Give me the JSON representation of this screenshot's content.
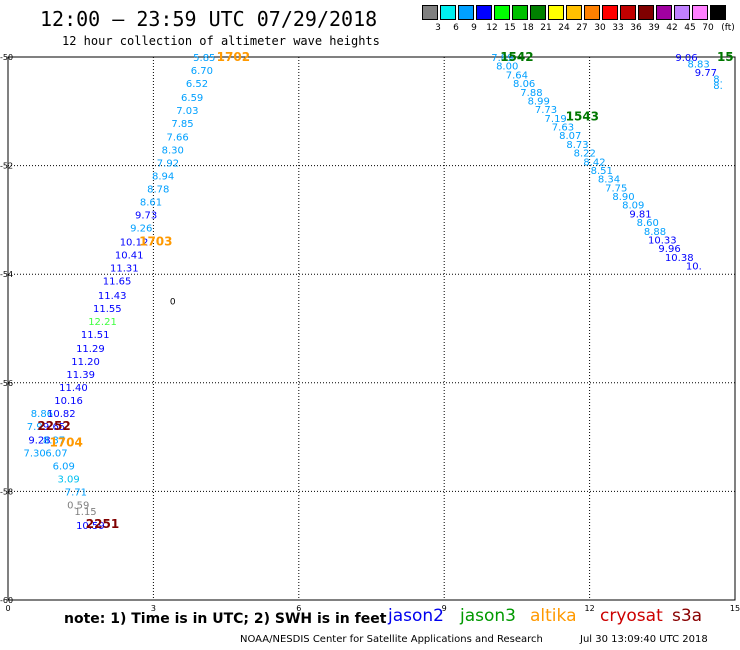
{
  "title": "12:00 – 23:59 UTC 07/29/2018",
  "subtitle": "12 hour collection of altimeter wave heights",
  "legend": {
    "unit": "(ft)",
    "bins": [
      {
        "label": "3",
        "color": "#808080"
      },
      {
        "label": "6",
        "color": "#00f0f0"
      },
      {
        "label": "9",
        "color": "#00a0ff"
      },
      {
        "label": "12",
        "color": "#0000ff"
      },
      {
        "label": "15",
        "color": "#00ff00"
      },
      {
        "label": "18",
        "color": "#00c000"
      },
      {
        "label": "21",
        "color": "#008000"
      },
      {
        "label": "24",
        "color": "#ffff00"
      },
      {
        "label": "27",
        "color": "#ffc000"
      },
      {
        "label": "30",
        "color": "#ff8000"
      },
      {
        "label": "33",
        "color": "#ff0000"
      },
      {
        "label": "36",
        "color": "#c00000"
      },
      {
        "label": "39",
        "color": "#800000"
      },
      {
        "label": "42",
        "color": "#a000a0"
      },
      {
        "label": "45",
        "color": "#c080ff"
      },
      {
        "label": "70",
        "color": "#ff80ff"
      },
      {
        "label": "",
        "color": "#000000"
      }
    ]
  },
  "axes": {
    "lat_ticks": [
      "-50",
      "-52",
      "-54",
      "-56",
      "-58",
      "-60"
    ],
    "lon_ticks": [
      "0",
      "3",
      "6",
      "9",
      "12",
      "15"
    ]
  },
  "chart_data": {
    "type": "scatter",
    "xlim": [
      0,
      15
    ],
    "ylim": [
      -60,
      -50
    ],
    "swh_points": [
      {
        "v": "5.85",
        "lon": 4.05,
        "lat": -50.0,
        "c": "#00a0ff"
      },
      {
        "v": "6.70",
        "lon": 4.0,
        "lat": -50.24,
        "c": "#00a0ff"
      },
      {
        "v": "6.52",
        "lon": 3.9,
        "lat": -50.48,
        "c": "#00a0ff"
      },
      {
        "v": "6.59",
        "lon": 3.8,
        "lat": -50.74,
        "c": "#00a0ff"
      },
      {
        "v": "7.03",
        "lon": 3.7,
        "lat": -50.98,
        "c": "#00a0ff"
      },
      {
        "v": "7.85",
        "lon": 3.6,
        "lat": -51.22,
        "c": "#00a0ff"
      },
      {
        "v": "7.66",
        "lon": 3.5,
        "lat": -51.46,
        "c": "#00a0ff"
      },
      {
        "v": "8.30",
        "lon": 3.4,
        "lat": -51.7,
        "c": "#00a0ff"
      },
      {
        "v": "7.92",
        "lon": 3.3,
        "lat": -51.94,
        "c": "#00a0ff"
      },
      {
        "v": "8.94",
        "lon": 3.2,
        "lat": -52.18,
        "c": "#00a0ff"
      },
      {
        "v": "8.78",
        "lon": 3.1,
        "lat": -52.42,
        "c": "#00a0ff"
      },
      {
        "v": "8.61",
        "lon": 2.95,
        "lat": -52.66,
        "c": "#00a0ff"
      },
      {
        "v": "9.73",
        "lon": 2.85,
        "lat": -52.9,
        "c": "#0000ff"
      },
      {
        "v": "9.26",
        "lon": 2.75,
        "lat": -53.14,
        "c": "#00a0ff"
      },
      {
        "v": "10.12",
        "lon": 2.6,
        "lat": -53.4,
        "c": "#0000ff"
      },
      {
        "v": "10.41",
        "lon": 2.5,
        "lat": -53.64,
        "c": "#0000ff"
      },
      {
        "v": "11.31",
        "lon": 2.4,
        "lat": -53.88,
        "c": "#0000ff"
      },
      {
        "v": "11.65",
        "lon": 2.25,
        "lat": -54.12,
        "c": "#0000ff"
      },
      {
        "v": "11.43",
        "lon": 2.15,
        "lat": -54.38,
        "c": "#0000ff"
      },
      {
        "v": "11.55",
        "lon": 2.05,
        "lat": -54.62,
        "c": "#0000ff"
      },
      {
        "v": "12.21",
        "lon": 1.95,
        "lat": -54.86,
        "c": "#40ff40"
      },
      {
        "v": "11.51",
        "lon": 1.8,
        "lat": -55.1,
        "c": "#0000ff"
      },
      {
        "v": "11.29",
        "lon": 1.7,
        "lat": -55.36,
        "c": "#0000ff"
      },
      {
        "v": "11.20",
        "lon": 1.6,
        "lat": -55.6,
        "c": "#0000ff"
      },
      {
        "v": "11.39",
        "lon": 1.5,
        "lat": -55.84,
        "c": "#0000ff"
      },
      {
        "v": "11.40",
        "lon": 1.35,
        "lat": -56.08,
        "c": "#0000ff"
      },
      {
        "v": "10.16",
        "lon": 1.25,
        "lat": -56.32,
        "c": "#0000ff"
      },
      {
        "v": "8.86",
        "lon": 0.7,
        "lat": -56.56,
        "c": "#00a0ff"
      },
      {
        "v": "10.82",
        "lon": 1.1,
        "lat": -56.56,
        "c": "#0000ff"
      },
      {
        "v": "7.9",
        "lon": 0.55,
        "lat": -56.8,
        "c": "#00a0ff"
      },
      {
        "v": "9.65",
        "lon": 0.95,
        "lat": -56.8,
        "c": "#0000ff"
      },
      {
        "v": "9.28",
        "lon": 0.65,
        "lat": -57.04,
        "c": "#0000ff"
      },
      {
        "v": "8.37",
        "lon": 0.95,
        "lat": -57.04,
        "c": "#00a0ff"
      },
      {
        "v": "7.30",
        "lon": 0.55,
        "lat": -57.28,
        "c": "#00a0ff"
      },
      {
        "v": "6.07",
        "lon": 1.0,
        "lat": -57.28,
        "c": "#00a0ff"
      },
      {
        "v": "6.09",
        "lon": 1.15,
        "lat": -57.52,
        "c": "#00a0ff"
      },
      {
        "v": "3.09",
        "lon": 1.25,
        "lat": -57.76,
        "c": "#00c0f0"
      },
      {
        "v": "7.71",
        "lon": 1.4,
        "lat": -58.0,
        "c": "#00a0ff"
      },
      {
        "v": "0.59",
        "lon": 1.45,
        "lat": -58.24,
        "c": "#808080"
      },
      {
        "v": "1.15",
        "lon": 1.6,
        "lat": -58.36,
        "c": "#808080"
      },
      {
        "v": "10.59",
        "lon": 1.7,
        "lat": -58.62,
        "c": "#0000ff"
      },
      {
        "v": "7.89",
        "lon": 10.2,
        "lat": -50.0,
        "c": "#00a0ff"
      },
      {
        "v": "8.00",
        "lon": 10.3,
        "lat": -50.16,
        "c": "#00a0ff"
      },
      {
        "v": "7.64",
        "lon": 10.5,
        "lat": -50.32,
        "c": "#00a0ff"
      },
      {
        "v": "8.06",
        "lon": 10.65,
        "lat": -50.48,
        "c": "#00a0ff"
      },
      {
        "v": "7.88",
        "lon": 10.8,
        "lat": -50.64,
        "c": "#00a0ff"
      },
      {
        "v": "8.99",
        "lon": 10.95,
        "lat": -50.8,
        "c": "#00a0ff"
      },
      {
        "v": "7.73",
        "lon": 11.1,
        "lat": -50.96,
        "c": "#00a0ff"
      },
      {
        "v": "7.19",
        "lon": 11.3,
        "lat": -51.12,
        "c": "#00a0ff"
      },
      {
        "v": "7.63",
        "lon": 11.45,
        "lat": -51.28,
        "c": "#00a0ff"
      },
      {
        "v": "8.07",
        "lon": 11.6,
        "lat": -51.44,
        "c": "#00a0ff"
      },
      {
        "v": "8.73",
        "lon": 11.75,
        "lat": -51.6,
        "c": "#00a0ff"
      },
      {
        "v": "8.22",
        "lon": 11.9,
        "lat": -51.76,
        "c": "#00a0ff"
      },
      {
        "v": "8.42",
        "lon": 12.1,
        "lat": -51.92,
        "c": "#00a0ff"
      },
      {
        "v": "8.51",
        "lon": 12.25,
        "lat": -52.08,
        "c": "#00a0ff"
      },
      {
        "v": "8.34",
        "lon": 12.4,
        "lat": -52.24,
        "c": "#00a0ff"
      },
      {
        "v": "7.75",
        "lon": 12.55,
        "lat": -52.4,
        "c": "#00a0ff"
      },
      {
        "v": "8.90",
        "lon": 12.7,
        "lat": -52.56,
        "c": "#00a0ff"
      },
      {
        "v": "8.09",
        "lon": 12.9,
        "lat": -52.72,
        "c": "#00a0ff"
      },
      {
        "v": "9.81",
        "lon": 13.05,
        "lat": -52.88,
        "c": "#0000ff"
      },
      {
        "v": "8.60",
        "lon": 13.2,
        "lat": -53.04,
        "c": "#00a0ff"
      },
      {
        "v": "8.88",
        "lon": 13.35,
        "lat": -53.2,
        "c": "#00a0ff"
      },
      {
        "v": "10.33",
        "lon": 13.5,
        "lat": -53.36,
        "c": "#0000ff"
      },
      {
        "v": "9.96",
        "lon": 13.65,
        "lat": -53.52,
        "c": "#0000ff"
      },
      {
        "v": "10.38",
        "lon": 13.85,
        "lat": -53.68,
        "c": "#0000ff"
      },
      {
        "v": "10.",
        "lon": 14.15,
        "lat": -53.84,
        "c": "#0000ff"
      },
      {
        "v": "9.06",
        "lon": 14.0,
        "lat": -50.0,
        "c": "#0000ff"
      },
      {
        "v": "8.83",
        "lon": 14.25,
        "lat": -50.12,
        "c": "#00a0ff"
      },
      {
        "v": "9.77",
        "lon": 14.4,
        "lat": -50.28,
        "c": "#0000ff"
      },
      {
        "v": "8.",
        "lon": 14.65,
        "lat": -50.4,
        "c": "#00a0ff"
      },
      {
        "v": "8.",
        "lon": 14.65,
        "lat": -50.52,
        "c": "#00a0ff"
      }
    ],
    "pass_times": [
      {
        "t": "1702",
        "lon": 4.65,
        "lat": -50.0,
        "c": "#ff9900"
      },
      {
        "t": "1703",
        "lon": 3.05,
        "lat": -53.4,
        "c": "#ff9900"
      },
      {
        "t": "1704",
        "lon": 1.2,
        "lat": -57.1,
        "c": "#ff9900"
      },
      {
        "t": "2252",
        "lon": 0.95,
        "lat": -56.8,
        "c": "#800000"
      },
      {
        "t": "2251",
        "lon": 1.95,
        "lat": -58.6,
        "c": "#800000"
      },
      {
        "t": "1542",
        "lon": 10.5,
        "lat": -50.0,
        "c": "#007700"
      },
      {
        "t": "1543",
        "lon": 11.85,
        "lat": -51.1,
        "c": "#007700"
      },
      {
        "t": "15",
        "lon": 14.8,
        "lat": -50.0,
        "c": "#007700"
      }
    ],
    "land_mark": {
      "t": "0",
      "lon": 3.4,
      "lat": -54.5,
      "c": "#000000"
    }
  },
  "footer": {
    "note": "note:  1) Time is in UTC;  2) SWH is in feet",
    "satellites": [
      {
        "name": "jason2",
        "color": "#0000ee"
      },
      {
        "name": "jason3",
        "color": "#009900"
      },
      {
        "name": "altika",
        "color": "#ff9900"
      },
      {
        "name": "cryosat",
        "color": "#cc0000"
      },
      {
        "name": "s3a",
        "color": "#880000"
      }
    ],
    "credit": "NOAA/NESDIS Center for Satellite Applications and Research",
    "timestamp": "Jul 30 13:09:40 UTC 2018"
  }
}
